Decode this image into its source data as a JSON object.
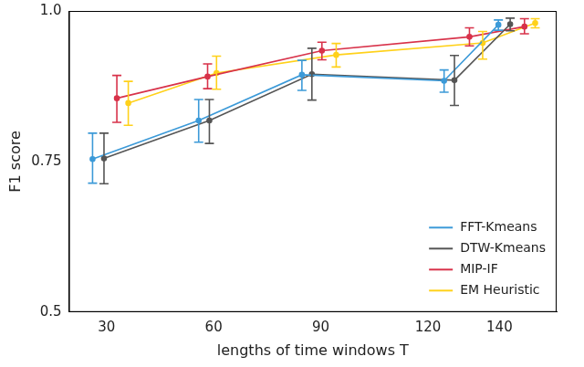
{
  "chart_data": {
    "type": "line",
    "x_label": "lengths of time windows T",
    "y_label": "F1 score",
    "xlim": [
      19.5,
      156
    ],
    "xticks": [
      30,
      60,
      90,
      120,
      140
    ],
    "ylim": [
      0.5,
      1.0
    ],
    "yticks": [
      0.5,
      0.75,
      {
        "value": 1.0,
        "label": "1.0"
      }
    ],
    "grid": false,
    "legend": "lower right",
    "marker": "circle",
    "series": [
      {
        "name": "FFT-Kmeans",
        "color": "#3c9ad8",
        "x": [
          26.1,
          55.8,
          84.7,
          124.5,
          139.7
        ],
        "values": [
          0.754,
          0.818,
          0.894,
          0.884,
          0.977
        ],
        "lower": [
          0.714,
          0.782,
          0.868,
          0.865,
          0.968
        ],
        "upper": [
          0.797,
          0.853,
          0.918,
          0.902,
          0.985
        ]
      },
      {
        "name": "DTW-Kmeans",
        "color": "#555555",
        "x": [
          29.3,
          58.8,
          87.5,
          127.4,
          143.0
        ],
        "values": [
          0.755,
          0.818,
          0.895,
          0.885,
          0.978
        ],
        "lower": [
          0.713,
          0.78,
          0.852,
          0.843,
          0.967
        ],
        "upper": [
          0.797,
          0.853,
          0.938,
          0.926,
          0.988
        ]
      },
      {
        "name": "MIP-IF",
        "color": "#d8324a",
        "x": [
          32.9,
          58.3,
          90.3,
          131.6,
          147.0
        ],
        "values": [
          0.855,
          0.891,
          0.934,
          0.957,
          0.974
        ],
        "lower": [
          0.815,
          0.871,
          0.919,
          0.942,
          0.962
        ],
        "upper": [
          0.893,
          0.912,
          0.948,
          0.972,
          0.987
        ]
      },
      {
        "name": "EM Heuristic",
        "color": "#ffd11a",
        "x": [
          36.1,
          60.8,
          94.3,
          135.3,
          150.0
        ],
        "values": [
          0.847,
          0.897,
          0.927,
          0.947,
          0.98
        ],
        "lower": [
          0.81,
          0.87,
          0.907,
          0.92,
          0.972
        ],
        "upper": [
          0.883,
          0.925,
          0.946,
          0.966,
          0.987
        ]
      }
    ]
  }
}
